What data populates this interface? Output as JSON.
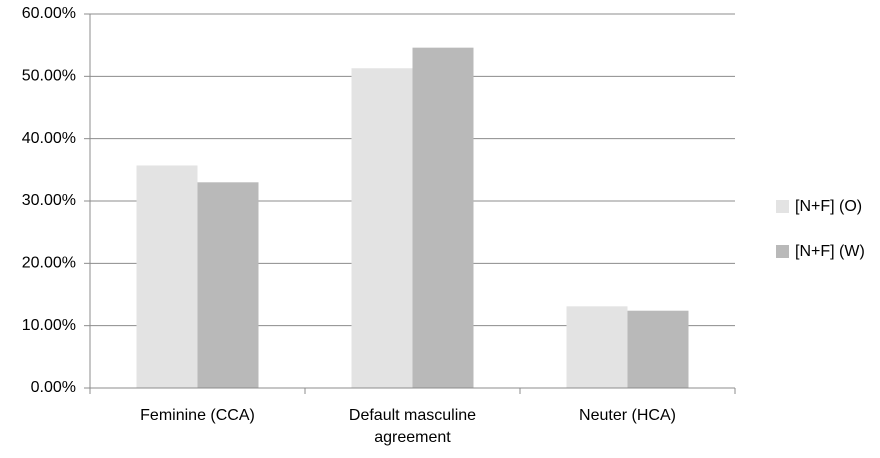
{
  "chart_data": {
    "type": "bar",
    "categories": [
      "Feminine (CCA)",
      "Default masculine agreement",
      "Neuter (HCA)"
    ],
    "series": [
      {
        "name": "[N+F] (O)",
        "color": "#e3e3e3",
        "values": [
          35.7,
          51.3,
          13.1
        ]
      },
      {
        "name": "[N+F] (W)",
        "color": "#b9b9b9",
        "values": [
          33.0,
          54.6,
          12.4
        ]
      }
    ],
    "ylim": [
      0,
      60
    ],
    "yticks": [
      {
        "value": 0,
        "label": "0.00%"
      },
      {
        "value": 10,
        "label": "10.00%"
      },
      {
        "value": 20,
        "label": "20.00%"
      },
      {
        "value": 30,
        "label": "30.00%"
      },
      {
        "value": 40,
        "label": "40.00%"
      },
      {
        "value": 50,
        "label": "50.00%"
      },
      {
        "value": 60,
        "label": "60.00%"
      }
    ],
    "grid": true,
    "legend": "right"
  }
}
